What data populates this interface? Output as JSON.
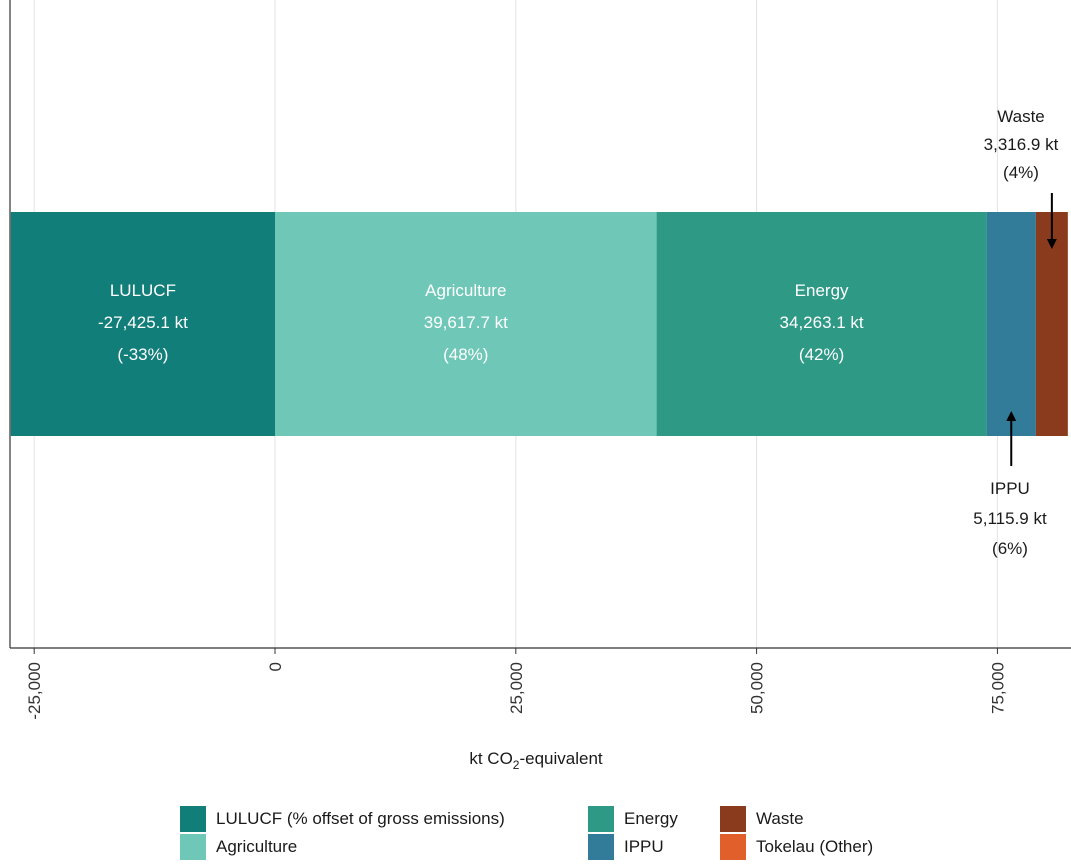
{
  "chart_data": {
    "type": "bar",
    "orientation": "horizontal-stacked",
    "xlabel_parts": {
      "pre": "kt CO",
      "sub": "2",
      "post": "-equivalent"
    },
    "x_ticks": [
      -25000,
      0,
      25000,
      50000,
      75000
    ],
    "x_tick_labels": [
      "-25,000",
      "0",
      "25,000",
      "50,000",
      "75,000"
    ],
    "xlim": [
      -27425.1,
      82312.8
    ],
    "grid": true,
    "legend_position": "bottom",
    "series": [
      {
        "key": "lulucf",
        "name": "LULUCF (% offset of gross emissions)",
        "label": "LULUCF",
        "value": -27425.1,
        "value_label": "-27,425.1 kt",
        "pct_label": "(-33%)",
        "color": "#127E7A"
      },
      {
        "key": "agriculture",
        "name": "Agriculture",
        "label": "Agriculture",
        "value": 39617.7,
        "value_label": "39,617.7 kt",
        "pct_label": "(48%)",
        "color": "#6FC7B7"
      },
      {
        "key": "energy",
        "name": "Energy",
        "label": "Energy",
        "value": 34263.1,
        "value_label": "34,263.1 kt",
        "pct_label": "(42%)",
        "color": "#2E9985"
      },
      {
        "key": "ippu",
        "name": "IPPU",
        "label": "IPPU",
        "value": 5115.9,
        "value_label": "5,115.9 kt",
        "pct_label": "(6%)",
        "color": "#337C99"
      },
      {
        "key": "waste",
        "name": "Waste",
        "label": "Waste",
        "value": 3316.9,
        "value_label": "3,316.9 kt",
        "pct_label": "(4%)",
        "color": "#8A3B1E"
      },
      {
        "key": "tokelau",
        "name": "Tokelau (Other)",
        "label": "Tokelau (Other)",
        "color": "#E05F2B"
      }
    ],
    "legend_order": [
      "lulucf",
      "agriculture",
      "energy",
      "ippu",
      "waste",
      "tokelau"
    ]
  }
}
